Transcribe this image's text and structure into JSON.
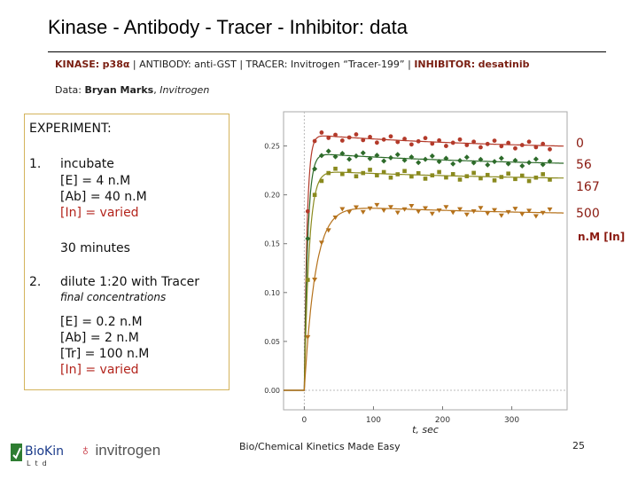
{
  "header": {
    "title": "Kinase - Antibody - Tracer - Inhibitor: data",
    "subtitle": {
      "kinase_label": "KINASE:",
      "kinase_value": "p38α",
      "antibody_text": "| ANTIBODY: anti-GST | TRACER: Invitrogen “Tracer-199” |",
      "inhibitor_label": "INHIBITOR:",
      "inhibitor_value": "desatinib"
    },
    "credit": {
      "label": "Data:",
      "name": "Bryan Marks",
      "org": "Invitrogen"
    }
  },
  "experiment": {
    "heading": "EXPERIMENT:",
    "step1": {
      "num": "1.",
      "title": "incubate",
      "lines": [
        "[E]   =   4 n.M",
        "[Ab] = 40 n.M",
        "[In]  = varied"
      ],
      "duration": "30 minutes"
    },
    "step2": {
      "num": "2.",
      "title": "dilute 1:20 with Tracer",
      "note": "final concentrations",
      "lines": [
        "[E]      =  0.2 n.M",
        "[Ab]   =      2 n.M",
        "[Tr]     = 100 n.M",
        "[In]     = varied"
      ]
    }
  },
  "concentrations": {
    "values": [
      "0",
      "56",
      "167",
      "500"
    ],
    "unit_label": "n.M [In]"
  },
  "chart_data": {
    "type": "scatter",
    "title": "",
    "xlabel": "t, sec",
    "ylabel": "",
    "xlim": [
      -30,
      380
    ],
    "ylim": [
      -0.02,
      0.285
    ],
    "x_ticks": [
      "0",
      "100",
      "200",
      "300"
    ],
    "x_tick_values": [
      0,
      100,
      200,
      300
    ],
    "y_ticks": [
      "0.00",
      "0.05",
      "0.10",
      "0.15",
      "0.20",
      "0.25"
    ],
    "y_tick_values": [
      0.0,
      0.05,
      0.1,
      0.15,
      0.2,
      0.25
    ],
    "series": [
      {
        "name": "0",
        "color": "#b33a2a",
        "marker": "circle",
        "plateau": 0.262,
        "final": 0.245,
        "tau": 4.0,
        "drift_tau": 300
      },
      {
        "name": "56",
        "color": "#2d6b2a",
        "marker": "diamond",
        "plateau": 0.243,
        "final": 0.228,
        "tau": 5.0,
        "drift_tau": 300
      },
      {
        "name": "167",
        "color": "#8a8a1e",
        "marker": "square",
        "plateau": 0.225,
        "final": 0.214,
        "tau": 7.0,
        "drift_tau": 300
      },
      {
        "name": "500",
        "color": "#b5721c",
        "marker": "triangle",
        "plateau": 0.19,
        "final": 0.178,
        "tau": 16.0,
        "drift_tau": 300
      }
    ],
    "x": [
      5,
      15,
      25,
      35,
      45,
      55,
      65,
      75,
      85,
      95,
      105,
      115,
      125,
      135,
      145,
      155,
      165,
      175,
      185,
      195,
      205,
      215,
      225,
      235,
      245,
      255,
      265,
      275,
      285,
      295,
      305,
      315,
      325,
      335,
      345,
      355
    ]
  },
  "footer": {
    "center": "Bio/Chemical Kinetics Made Easy",
    "page": "25",
    "logo_biokin": "BioKin",
    "logo_biokin_sub": "Ltd",
    "logo_invitrogen": "invitrogen"
  }
}
